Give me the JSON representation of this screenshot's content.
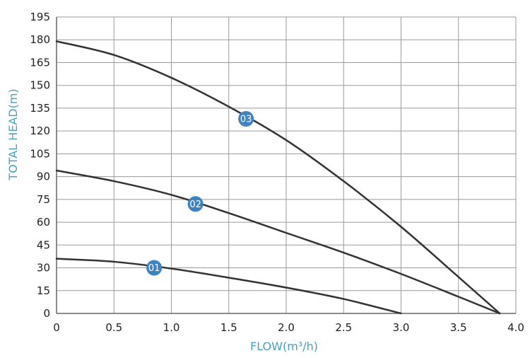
{
  "colors": {
    "background": "#ffffff",
    "grid": "#9a9a9a",
    "axis": "#666666",
    "curve": "#333333",
    "axis_title": "#4aa3b8",
    "marker_fill": "#3f82c0",
    "marker_text": "#ffffff"
  },
  "chart_data": {
    "type": "line",
    "title": "",
    "xlabel": "FLOW(m³/h)",
    "ylabel": "TOTAL HEAD(m)",
    "xlim": [
      0,
      4.0
    ],
    "ylim": [
      0,
      195
    ],
    "xticks": [
      0,
      0.5,
      1.0,
      1.5,
      2.0,
      2.5,
      3.0,
      3.5,
      4.0
    ],
    "xtick_labels": [
      "0",
      "0.5",
      "1.0",
      "1.5",
      "2.0",
      "2.5",
      "3.0",
      "3.5",
      "4.0"
    ],
    "yticks": [
      0,
      15,
      30,
      45,
      60,
      75,
      90,
      105,
      120,
      135,
      150,
      165,
      180,
      195
    ],
    "ytick_labels": [
      "0",
      "15",
      "30",
      "45",
      "60",
      "75",
      "90",
      "105",
      "120",
      "135",
      "150",
      "165",
      "180",
      "195"
    ],
    "grid": true,
    "series": [
      {
        "marker_label": "01",
        "marker_at": [
          0.85,
          30
        ],
        "points": [
          [
            0,
            36
          ],
          [
            0.5,
            34
          ],
          [
            1.0,
            29.5
          ],
          [
            1.5,
            23.5
          ],
          [
            2.0,
            17
          ],
          [
            2.5,
            9.5
          ],
          [
            3.0,
            0
          ]
        ]
      },
      {
        "marker_label": "02",
        "marker_at": [
          1.21,
          72
        ],
        "points": [
          [
            0,
            94
          ],
          [
            0.5,
            87
          ],
          [
            1.0,
            78
          ],
          [
            1.5,
            66
          ],
          [
            2.0,
            53
          ],
          [
            2.5,
            40
          ],
          [
            3.0,
            26
          ],
          [
            3.5,
            11
          ],
          [
            3.86,
            0
          ]
        ]
      },
      {
        "marker_label": "03",
        "marker_at": [
          1.65,
          128
        ],
        "points": [
          [
            0,
            179
          ],
          [
            0.5,
            170
          ],
          [
            1.0,
            155
          ],
          [
            1.5,
            136
          ],
          [
            2.0,
            114
          ],
          [
            2.5,
            87
          ],
          [
            3.0,
            57
          ],
          [
            3.5,
            24
          ],
          [
            3.86,
            0
          ]
        ]
      }
    ]
  }
}
